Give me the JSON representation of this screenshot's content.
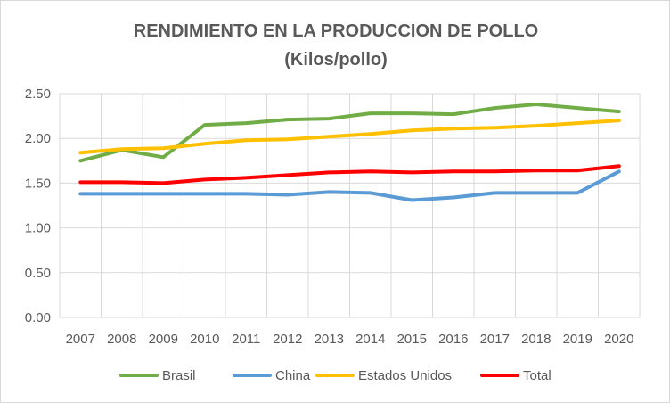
{
  "chart_data": {
    "type": "line",
    "title": "RENDIMIENTO EN LA PRODUCCION DE POLLO",
    "subtitle": "(Kilos/pollo)",
    "xlabel": "",
    "ylabel": "",
    "categories": [
      "2007",
      "2008",
      "2009",
      "2010",
      "2011",
      "2012",
      "2013",
      "2014",
      "2015",
      "2016",
      "2017",
      "2018",
      "2019",
      "2020"
    ],
    "ylim": [
      0,
      2.5
    ],
    "yticks": [
      "0.00",
      "0.50",
      "1.00",
      "1.50",
      "2.00",
      "2.50"
    ],
    "grid": true,
    "legend_position": "bottom",
    "series": [
      {
        "name": "Brasil",
        "color": "#70ad47",
        "values": [
          1.75,
          1.87,
          1.79,
          2.15,
          2.17,
          2.21,
          2.22,
          2.28,
          2.28,
          2.27,
          2.34,
          2.38,
          2.34,
          2.3
        ]
      },
      {
        "name": "China",
        "color": "#5b9bd5",
        "values": [
          1.38,
          1.38,
          1.38,
          1.38,
          1.38,
          1.37,
          1.4,
          1.39,
          1.31,
          1.34,
          1.39,
          1.39,
          1.39,
          1.63
        ]
      },
      {
        "name": "Estados Unidos",
        "color": "#ffc000",
        "values": [
          1.84,
          1.88,
          1.89,
          1.94,
          1.98,
          1.99,
          2.02,
          2.05,
          2.09,
          2.11,
          2.12,
          2.14,
          2.17,
          2.2
        ]
      },
      {
        "name": "Total",
        "color": "#ff0000",
        "values": [
          1.51,
          1.51,
          1.5,
          1.54,
          1.56,
          1.59,
          1.62,
          1.63,
          1.62,
          1.63,
          1.63,
          1.64,
          1.64,
          1.69
        ]
      }
    ]
  }
}
